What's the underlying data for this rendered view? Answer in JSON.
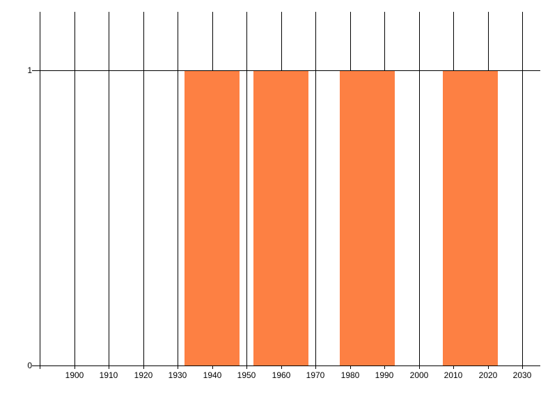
{
  "chart_title": "",
  "colors": {
    "background": "#ffffff",
    "gridline": "#000000",
    "axis_line": "#000000",
    "bar_fill": "#FD8043",
    "label_text": "#000000"
  },
  "chart_data": {
    "type": "bar",
    "title": "",
    "xlabel": "",
    "ylabel": "",
    "legend": "none",
    "grid": "vertical gridlines at each decade; horizontal gridline at y=1",
    "xlim": [
      1890,
      2035
    ],
    "ylim": [
      0,
      1.2
    ],
    "x_gridline_years": [
      1890,
      1900,
      1910,
      1920,
      1930,
      1940,
      1950,
      1960,
      1970,
      1980,
      1990,
      2000,
      2010,
      2020,
      2030
    ],
    "x_tick_years": [
      1900,
      1910,
      1920,
      1930,
      1940,
      1950,
      1960,
      1970,
      1980,
      1990,
      2000,
      2010,
      2020,
      2030
    ],
    "x_tick_labels": [
      "1900",
      "1910",
      "1920",
      "1930",
      "1940",
      "1950",
      "1960",
      "1970",
      "1980",
      "1990",
      "2000",
      "2010",
      "2020",
      "2030"
    ],
    "y_ticks": [
      {
        "value": 0,
        "label": "0"
      },
      {
        "value": 1,
        "label": "1"
      }
    ],
    "bar_color": "#FD8043",
    "bars": [
      {
        "start_year": 1932,
        "end_year": 1948,
        "value": 1
      },
      {
        "start_year": 1952,
        "end_year": 1968,
        "value": 1
      },
      {
        "start_year": 1977,
        "end_year": 1993,
        "value": 1
      },
      {
        "start_year": 2007,
        "end_year": 2023,
        "value": 1
      }
    ]
  }
}
